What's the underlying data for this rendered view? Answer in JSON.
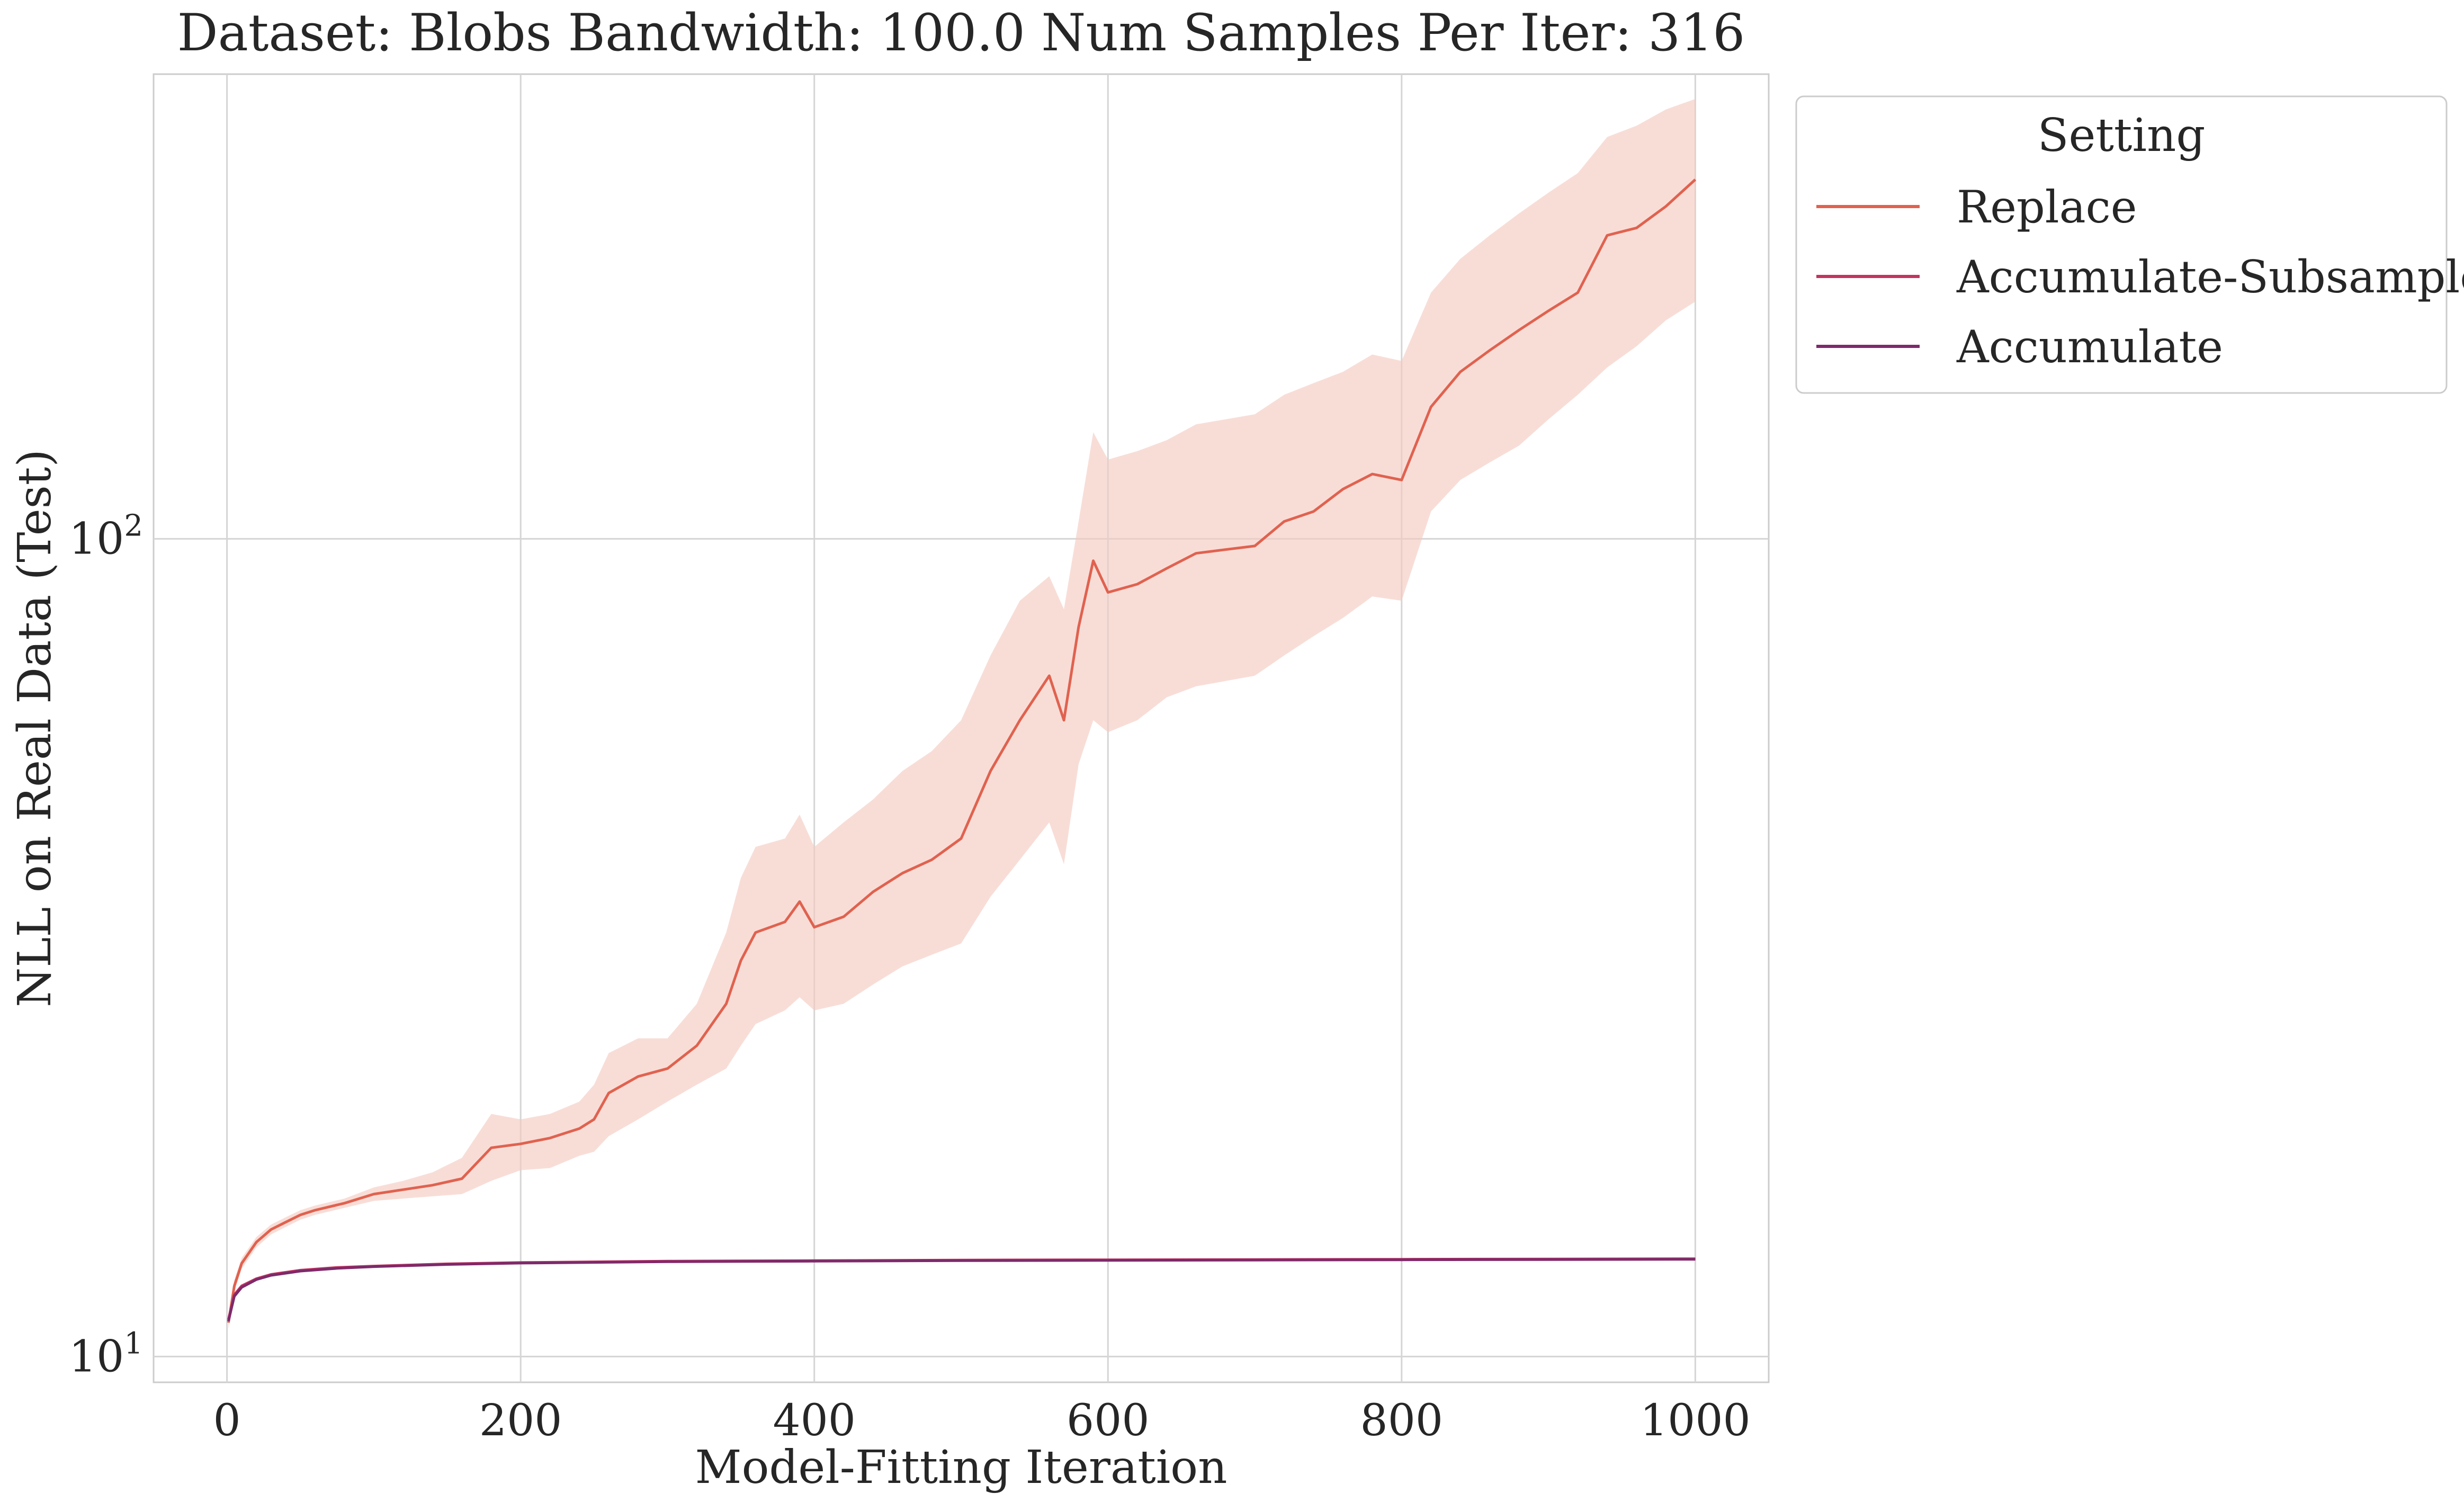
{
  "chart_data": {
    "type": "line",
    "title": "Dataset: Blobs Bandwidth: 100.0 Num Samples Per Iter: 316",
    "xlabel": "Model-Fitting Iteration",
    "ylabel": "NLL on Real Data (Test)",
    "xlim": [
      -50,
      1050
    ],
    "ylim": [
      9.3,
      370
    ],
    "yscale": "log",
    "x_ticks": [
      0,
      200,
      400,
      600,
      800,
      1000
    ],
    "x_tick_labels": [
      "0",
      "200",
      "400",
      "600",
      "800",
      "1000"
    ],
    "y_ticks": [
      10,
      100
    ],
    "y_tick_labels": [
      {
        "base": "10",
        "exp": "1"
      },
      {
        "base": "10",
        "exp": "2"
      }
    ],
    "grid": true,
    "legend": {
      "title": "Setting",
      "placement": "outside-upper-right"
    },
    "series": [
      {
        "name": "Replace",
        "color": "#e0624f",
        "band_color": "#f5cbc2",
        "x": [
          1,
          5,
          10,
          20,
          30,
          40,
          50,
          60,
          80,
          100,
          120,
          140,
          160,
          180,
          200,
          220,
          240,
          250,
          260,
          280,
          300,
          320,
          340,
          350,
          360,
          380,
          390,
          400,
          420,
          440,
          460,
          480,
          500,
          520,
          540,
          560,
          570,
          580,
          590,
          600,
          620,
          640,
          660,
          680,
          700,
          720,
          740,
          760,
          780,
          800,
          820,
          840,
          860,
          880,
          900,
          920,
          940,
          960,
          980,
          1000
        ],
        "y": [
          11,
          12.2,
          13,
          13.8,
          14.3,
          14.6,
          14.9,
          15.1,
          15.4,
          15.8,
          16.0,
          16.2,
          16.5,
          18.0,
          18.2,
          18.5,
          19.0,
          19.5,
          21.0,
          22.0,
          22.5,
          24.0,
          27.0,
          30.5,
          33.0,
          34.0,
          36.0,
          33.5,
          34.5,
          37.0,
          39.0,
          40.5,
          43.0,
          52.0,
          60.0,
          68.0,
          60.0,
          78.0,
          94.0,
          86.0,
          88.0,
          92.0,
          96.0,
          97.0,
          98.0,
          105.0,
          108.0,
          115.0,
          120.0,
          118.0,
          145.0,
          160.0,
          170.0,
          180.0,
          190.0,
          200.0,
          235.0,
          240.0,
          255.0,
          275.0
        ],
        "upper": [
          11.2,
          12.4,
          13.2,
          14.0,
          14.5,
          14.8,
          15.1,
          15.3,
          15.6,
          16.1,
          16.4,
          16.8,
          17.5,
          19.8,
          19.5,
          19.8,
          20.5,
          21.5,
          23.5,
          24.5,
          24.5,
          27.0,
          33.0,
          38.5,
          42.0,
          43.0,
          46.0,
          42.0,
          45.0,
          48.0,
          52.0,
          55.0,
          60.0,
          72.0,
          84.0,
          90.0,
          82.0,
          105.0,
          135.0,
          125.0,
          128.0,
          132.0,
          138.0,
          140.0,
          142.0,
          150.0,
          155.0,
          160.0,
          168.0,
          165.0,
          200.0,
          220.0,
          235.0,
          250.0,
          265.0,
          280.0,
          310.0,
          320.0,
          335.0,
          345.0
        ],
        "lower": [
          10.8,
          12.0,
          12.8,
          13.6,
          14.1,
          14.4,
          14.7,
          14.9,
          15.2,
          15.5,
          15.6,
          15.7,
          15.8,
          16.4,
          16.9,
          17.0,
          17.6,
          17.8,
          18.6,
          19.5,
          20.5,
          21.5,
          22.5,
          24.0,
          25.5,
          26.5,
          27.5,
          26.5,
          27.0,
          28.5,
          30.0,
          31.0,
          32.0,
          36.5,
          40.5,
          45.0,
          40.0,
          53.0,
          60.0,
          58.0,
          60.0,
          64.0,
          66.0,
          67.0,
          68.0,
          72.0,
          76.0,
          80.0,
          85.0,
          84.0,
          108.0,
          118.0,
          124.0,
          130.0,
          140.0,
          150.0,
          162.0,
          172.0,
          185.0,
          195.0
        ]
      },
      {
        "name": "Accumulate-Subsample",
        "color": "#c2345f",
        "x": [
          1,
          3,
          5,
          10,
          20,
          30,
          50,
          75,
          100,
          150,
          200,
          300,
          400,
          500,
          600,
          700,
          800,
          900,
          1000
        ],
        "y": [
          11.1,
          11.5,
          11.9,
          12.2,
          12.45,
          12.6,
          12.75,
          12.85,
          12.9,
          12.98,
          13.03,
          13.08,
          13.1,
          13.12,
          13.13,
          13.14,
          13.15,
          13.16,
          13.17
        ]
      },
      {
        "name": "Accumulate",
        "color": "#7d2a6b",
        "x": [
          1,
          3,
          5,
          10,
          20,
          30,
          50,
          75,
          100,
          150,
          200,
          300,
          400,
          500,
          600,
          700,
          800,
          900,
          1000
        ],
        "y": [
          11.05,
          11.45,
          11.85,
          12.15,
          12.42,
          12.57,
          12.72,
          12.82,
          12.88,
          12.96,
          13.01,
          13.06,
          13.08,
          13.1,
          13.11,
          13.12,
          13.13,
          13.14,
          13.15
        ]
      }
    ]
  }
}
